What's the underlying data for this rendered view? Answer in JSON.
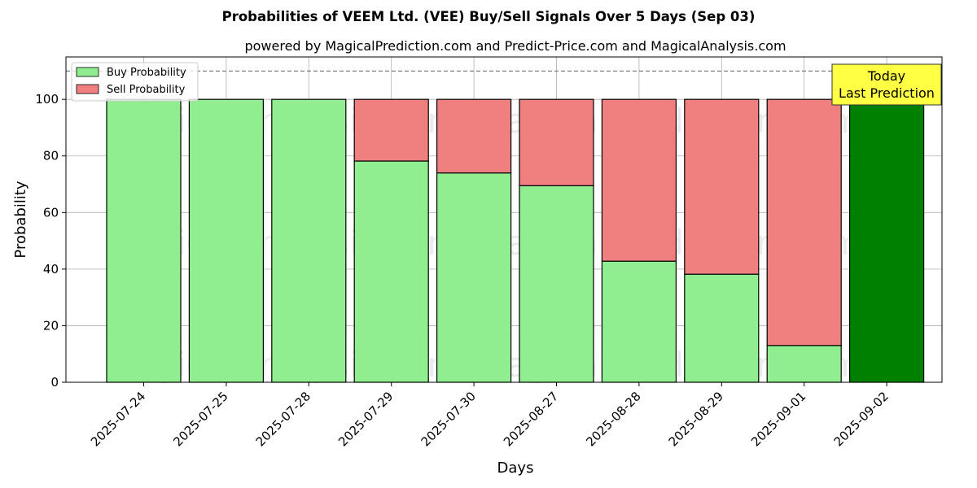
{
  "chart_data": {
    "type": "bar",
    "title": "Probabilities of VEEM Ltd. (VEE) Buy/Sell Signals Over 5 Days (Sep 03)",
    "subtitle": "powered by MagicalPrediction.com and Predict-Price.com and MagicalAnalysis.com",
    "xlabel": "Days",
    "ylabel": "Probability",
    "ylim": [
      0,
      115
    ],
    "yticks": [
      0,
      20,
      40,
      60,
      80,
      100
    ],
    "stacked": true,
    "grid": true,
    "legend_position": "top-left",
    "categories": [
      "2025-07-24",
      "2025-07-25",
      "2025-07-28",
      "2025-07-29",
      "2025-07-30",
      "2025-08-27",
      "2025-08-28",
      "2025-08-29",
      "2025-09-01",
      "2025-09-02"
    ],
    "series": [
      {
        "name": "Buy Probability",
        "color": "#90ee90",
        "values": [
          100,
          100,
          100,
          78.2,
          74,
          69.5,
          42.8,
          38.2,
          13,
          100
        ]
      },
      {
        "name": "Sell Probability",
        "color": "#f08080",
        "values": [
          0,
          0,
          0,
          21.8,
          26,
          30.5,
          57.2,
          61.8,
          87,
          0
        ]
      }
    ],
    "highlight": {
      "category": "2025-09-02",
      "color": "#008000"
    },
    "reference_line": {
      "y": 110,
      "style": "dashed",
      "color": "#808080"
    },
    "annotation": {
      "lines": [
        "Today",
        "Last Prediction"
      ],
      "background": "#ffff44"
    },
    "watermarks": [
      "MagicalAnalysis.com",
      "MagicalPrediction.com"
    ]
  }
}
